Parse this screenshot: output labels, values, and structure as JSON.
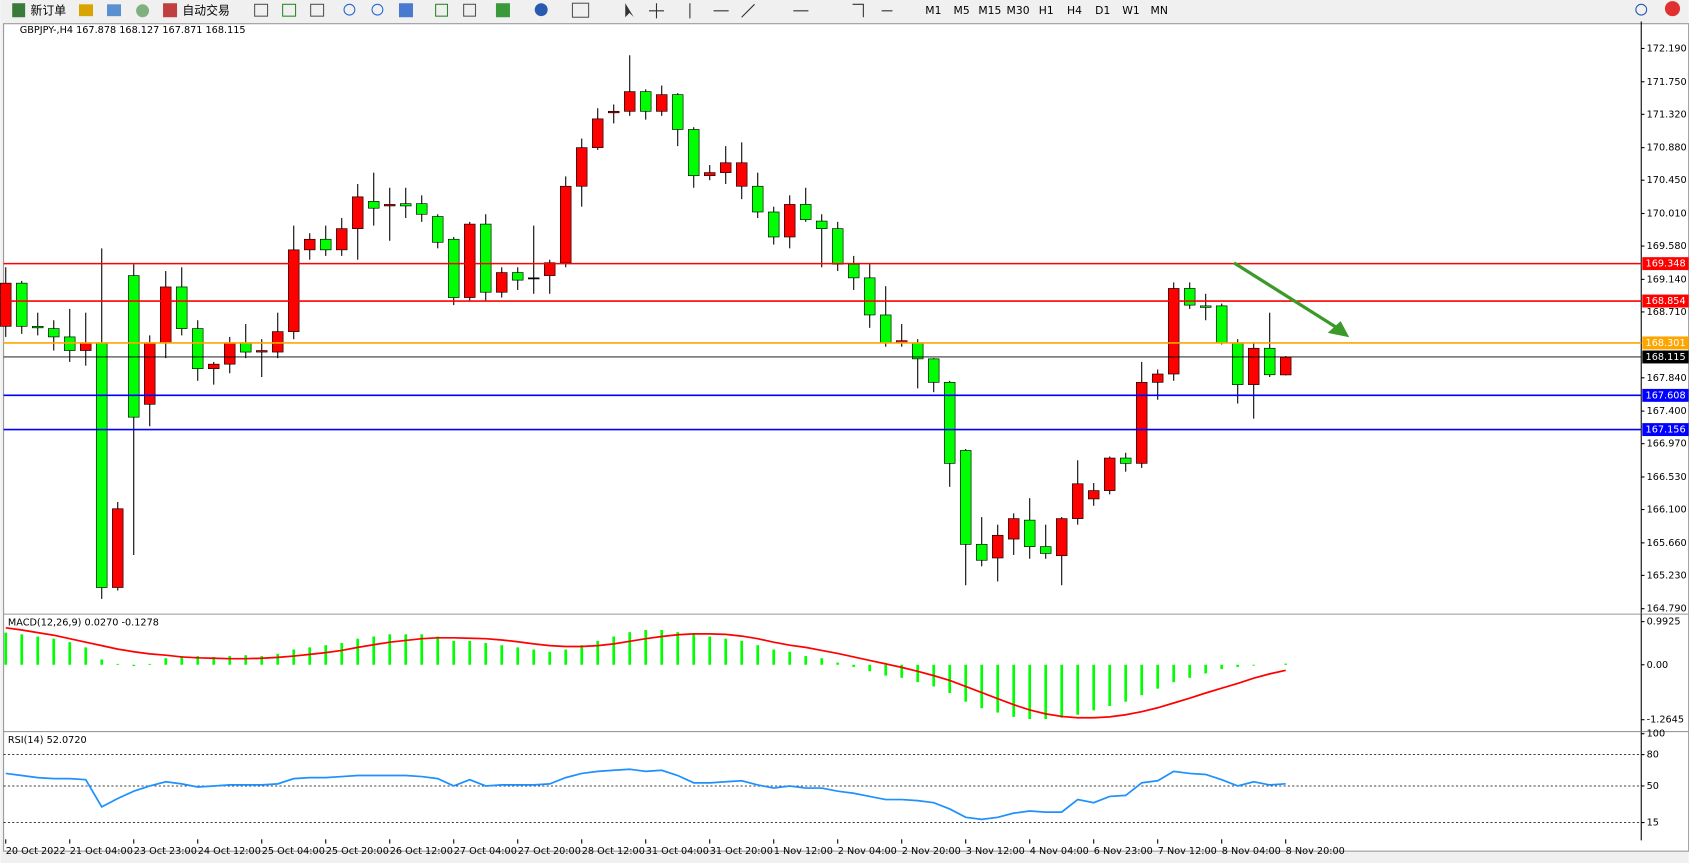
{
  "toolbar": {
    "new_order": "新订单",
    "auto_trading": "自动交易",
    "timeframes": [
      "M1",
      "M5",
      "M15",
      "M30",
      "H1",
      "H4",
      "D1",
      "W1",
      "MN"
    ]
  },
  "chart_data": [
    {
      "type": "candlestick",
      "title": "GBPJPY-,H4 167.878 168.127 167.871 168.115",
      "up_color": "#ff0000",
      "down_color": "#00ff00",
      "categories": [
        "20 Oct 2022",
        null,
        null,
        null,
        "21 Oct 04:00",
        null,
        null,
        null,
        "23 Oct 23:00",
        null,
        null,
        null,
        "24 Oct 12:00",
        null,
        null,
        null,
        "25 Oct 04:00",
        null,
        null,
        null,
        "25 Oct 20:00",
        null,
        null,
        null,
        "26 Oct 12:00",
        null,
        null,
        null,
        "27 Oct 04:00",
        null,
        null,
        null,
        "27 Oct 20:00",
        null,
        null,
        null,
        "28 Oct 12:00",
        null,
        null,
        null,
        "31 Oct 04:00",
        null,
        null,
        null,
        "31 Oct 20:00",
        null,
        null,
        null,
        "1 Nov 12:00",
        null,
        null,
        null,
        "2 Nov 04:00",
        null,
        null,
        null,
        "2 Nov 20:00",
        null,
        null,
        null,
        "3 Nov 12:00",
        null,
        null,
        null,
        "4 Nov 04:00",
        null,
        null,
        null,
        "6 Nov 23:00",
        null,
        null,
        null,
        "7 Nov 12:00",
        null,
        null,
        null,
        "8 Nov 04:00",
        null,
        null,
        null,
        "8 Nov 20:00"
      ],
      "open": [
        168.52,
        169.09,
        168.52,
        168.49,
        168.38,
        168.2,
        168.3,
        165.07,
        169.19,
        167.49,
        168.3,
        169.04,
        168.49,
        167.96,
        168.02,
        168.3,
        168.18,
        168.18,
        168.45,
        169.53,
        169.67,
        169.53,
        169.81,
        170.17,
        170.11,
        170.14,
        170.14,
        169.97,
        169.67,
        168.9,
        169.87,
        168.97,
        169.23,
        169.16,
        169.19,
        169.36,
        170.37,
        170.88,
        171.34,
        171.36,
        171.62,
        171.36,
        171.58,
        171.12,
        170.51,
        170.55,
        170.37,
        170.37,
        170.03,
        169.7,
        170.13,
        169.91,
        169.81,
        169.34,
        169.16,
        168.67,
        168.3,
        168.3,
        168.09,
        167.78,
        166.88,
        165.64,
        165.46,
        165.71,
        165.96,
        165.61,
        165.49,
        165.98,
        166.24,
        166.35,
        166.78,
        166.71,
        167.78,
        167.89,
        169.02,
        168.79,
        168.79,
        168.3,
        167.75,
        168.23,
        167.878
      ],
      "high": [
        169.3,
        169.12,
        168.7,
        168.6,
        168.75,
        168.7,
        169.55,
        166.2,
        169.34,
        168.4,
        169.25,
        169.3,
        168.6,
        168.05,
        168.38,
        168.55,
        168.35,
        168.7,
        169.85,
        169.75,
        169.85,
        169.95,
        170.4,
        170.55,
        170.35,
        170.35,
        170.25,
        170.0,
        169.7,
        169.9,
        170.0,
        169.3,
        169.3,
        169.85,
        169.4,
        170.5,
        171.0,
        171.4,
        171.45,
        172.1,
        171.65,
        171.7,
        171.6,
        171.15,
        170.65,
        170.9,
        170.95,
        170.55,
        170.1,
        170.25,
        170.35,
        170.0,
        169.9,
        169.45,
        169.35,
        169.05,
        168.55,
        168.35,
        168.1,
        167.8,
        166.9,
        166.0,
        165.9,
        166.05,
        166.25,
        165.9,
        166.0,
        166.75,
        166.45,
        166.8,
        166.85,
        168.05,
        167.95,
        169.1,
        169.1,
        168.95,
        168.82,
        168.35,
        168.3,
        168.7,
        168.127
      ],
      "low": [
        168.38,
        168.42,
        168.4,
        168.2,
        168.05,
        168.0,
        164.92,
        165.03,
        165.5,
        167.2,
        168.1,
        168.4,
        167.8,
        167.75,
        167.9,
        168.1,
        167.85,
        168.1,
        168.35,
        169.4,
        169.45,
        169.45,
        169.4,
        169.85,
        169.65,
        169.95,
        169.9,
        169.55,
        168.8,
        168.85,
        168.85,
        168.9,
        169.0,
        168.95,
        168.95,
        169.3,
        170.1,
        170.85,
        171.2,
        171.3,
        171.25,
        171.3,
        170.9,
        170.35,
        170.45,
        170.4,
        170.2,
        169.95,
        169.6,
        169.55,
        169.9,
        169.3,
        169.25,
        169.0,
        168.5,
        168.25,
        168.25,
        167.7,
        167.65,
        166.4,
        165.1,
        165.35,
        165.15,
        165.5,
        165.45,
        165.45,
        165.1,
        165.9,
        166.15,
        166.3,
        166.6,
        166.65,
        167.55,
        167.8,
        168.75,
        168.6,
        168.28,
        167.5,
        167.3,
        167.85,
        167.871
      ],
      "close": [
        169.09,
        168.52,
        168.5,
        168.38,
        168.2,
        168.3,
        165.07,
        166.11,
        167.32,
        168.3,
        169.04,
        168.49,
        167.96,
        168.02,
        168.3,
        168.18,
        168.2,
        168.45,
        169.53,
        169.67,
        169.53,
        169.81,
        170.23,
        170.08,
        170.13,
        170.11,
        170.0,
        169.63,
        168.9,
        169.87,
        168.97,
        169.23,
        169.13,
        169.16,
        169.36,
        170.37,
        170.88,
        171.26,
        171.36,
        171.62,
        171.36,
        171.58,
        171.12,
        170.51,
        170.55,
        170.68,
        170.68,
        170.03,
        169.7,
        170.13,
        169.93,
        169.81,
        169.34,
        169.16,
        168.67,
        168.3,
        168.33,
        168.09,
        167.78,
        166.71,
        165.64,
        165.43,
        165.76,
        165.98,
        165.61,
        165.52,
        165.98,
        166.44,
        166.35,
        166.78,
        166.71,
        167.78,
        167.89,
        169.02,
        168.8,
        168.77,
        168.3,
        167.75,
        168.23,
        167.88,
        168.115
      ],
      "ylim": [
        164.747,
        172.517
      ],
      "yticks": [
        {
          "value": 172.19,
          "label": "172.190"
        },
        {
          "value": 171.75,
          "label": "171.750"
        },
        {
          "value": 171.32,
          "label": "171.320"
        },
        {
          "value": 170.88,
          "label": "170.880"
        },
        {
          "value": 170.45,
          "label": "170.450"
        },
        {
          "value": 170.01,
          "label": "170.010"
        },
        {
          "value": 169.58,
          "label": "169.580"
        },
        {
          "value": 169.14,
          "label": "169.140"
        },
        {
          "value": 168.71,
          "label": "168.710"
        },
        {
          "value": 167.84,
          "label": "167.840"
        },
        {
          "value": 167.4,
          "label": "167.400"
        },
        {
          "value": 166.97,
          "label": "166.970"
        },
        {
          "value": 166.53,
          "label": "166.530"
        },
        {
          "value": 166.1,
          "label": "166.100"
        },
        {
          "value": 165.66,
          "label": "165.660"
        },
        {
          "value": 165.23,
          "label": "165.230"
        },
        {
          "value": 164.79,
          "label": "164.790"
        }
      ],
      "levels": [
        {
          "value": 169.348,
          "color": "#ff0000"
        },
        {
          "value": 168.854,
          "color": "#ff0000"
        },
        {
          "value": 168.301,
          "color": "#ffa500"
        },
        {
          "value": 168.115,
          "color": "#000000"
        },
        {
          "value": 167.608,
          "color": "#0000ff"
        },
        {
          "value": 167.156,
          "color": "#0000ff"
        }
      ]
    },
    {
      "type": "macd",
      "title": "MACD(12,26,9) 0.0270 -0.1278",
      "ylim": [
        -1.488,
        1.116
      ],
      "yticks": [
        0.9925,
        {
          "value": 0,
          "label": "0.00"
        },
        -1.2645
      ],
      "series": [
        {
          "kind": "histogram",
          "color": "#00ff00",
          "values": [
            0.74,
            0.7,
            0.65,
            0.6,
            0.52,
            0.4,
            0.12,
            0.02,
            -0.03,
            0.02,
            0.15,
            0.2,
            0.2,
            0.18,
            0.2,
            0.22,
            0.2,
            0.25,
            0.35,
            0.4,
            0.45,
            0.5,
            0.6,
            0.65,
            0.7,
            0.7,
            0.7,
            0.65,
            0.55,
            0.55,
            0.5,
            0.45,
            0.4,
            0.35,
            0.3,
            0.35,
            0.45,
            0.55,
            0.65,
            0.75,
            0.8,
            0.8,
            0.75,
            0.7,
            0.65,
            0.6,
            0.55,
            0.45,
            0.35,
            0.3,
            0.2,
            0.15,
            0.05,
            -0.05,
            -0.15,
            -0.25,
            -0.3,
            -0.4,
            -0.5,
            -0.65,
            -0.85,
            -1.0,
            -1.1,
            -1.2,
            -1.25,
            -1.25,
            -1.22,
            -1.15,
            -1.05,
            -0.95,
            -0.85,
            -0.7,
            -0.55,
            -0.4,
            -0.3,
            -0.2,
            -0.1,
            -0.05,
            -0.02,
            0.0,
            0.027
          ]
        },
        {
          "kind": "line",
          "color": "#ff0000",
          "values": [
            0.85,
            0.8,
            0.74,
            0.68,
            0.6,
            0.52,
            0.44,
            0.36,
            0.3,
            0.25,
            0.22,
            0.18,
            0.16,
            0.15,
            0.14,
            0.14,
            0.15,
            0.17,
            0.2,
            0.24,
            0.28,
            0.33,
            0.4,
            0.46,
            0.52,
            0.56,
            0.6,
            0.62,
            0.62,
            0.61,
            0.6,
            0.57,
            0.53,
            0.48,
            0.44,
            0.42,
            0.42,
            0.44,
            0.48,
            0.54,
            0.6,
            0.65,
            0.69,
            0.71,
            0.71,
            0.7,
            0.66,
            0.6,
            0.52,
            0.45,
            0.4,
            0.33,
            0.26,
            0.18,
            0.1,
            0.02,
            -0.06,
            -0.15,
            -0.25,
            -0.36,
            -0.5,
            -0.64,
            -0.78,
            -0.92,
            -1.04,
            -1.13,
            -1.19,
            -1.22,
            -1.22,
            -1.2,
            -1.15,
            -1.08,
            -0.99,
            -0.88,
            -0.77,
            -0.65,
            -0.54,
            -0.43,
            -0.31,
            -0.21,
            -0.1278
          ]
        }
      ]
    },
    {
      "type": "rsi",
      "title": "RSI(14) 52.0720",
      "ylim": [
        0,
        100
      ],
      "yticks": [
        100,
        80,
        50,
        15
      ],
      "levels": [
        80,
        50,
        15
      ],
      "series": [
        {
          "kind": "line",
          "color": "#1e90ff",
          "values": [
            62,
            60,
            58,
            57,
            57,
            56,
            30,
            38,
            45,
            50,
            54,
            52,
            49,
            50,
            51,
            51,
            51,
            52,
            57,
            58,
            58,
            59,
            60,
            60,
            60,
            60,
            59,
            57,
            50,
            56,
            50,
            51,
            51,
            51,
            52,
            58,
            62,
            64,
            65,
            66,
            64,
            65,
            60,
            53,
            53,
            54,
            55,
            51,
            48,
            50,
            48,
            48,
            45,
            43,
            40,
            37,
            37,
            36,
            34,
            28,
            20,
            18,
            20,
            24,
            26,
            25,
            25,
            37,
            34,
            40,
            41,
            53,
            55,
            64,
            62,
            61,
            56,
            50,
            54,
            51,
            52.072
          ]
        }
      ]
    }
  ]
}
